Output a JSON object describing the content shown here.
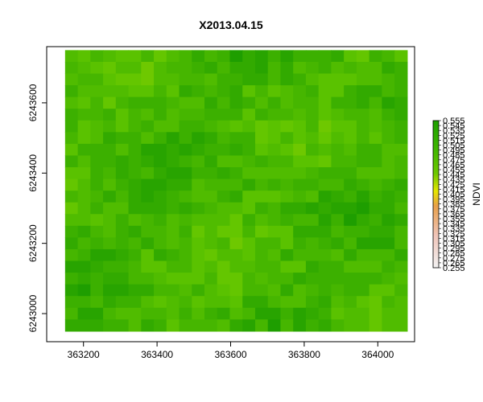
{
  "chart_data": {
    "type": "heatmap",
    "title": "X2013.04.15",
    "xlabel": "",
    "ylabel": "",
    "xlim": [
      363100,
      364100
    ],
    "ylim": [
      6242920,
      6243760
    ],
    "raster_extent": {
      "xmin": 363150,
      "xmax": 364080,
      "ymin": 6242950,
      "ymax": 6243750
    },
    "x_ticks": [
      363200,
      363400,
      363600,
      363800,
      364000
    ],
    "y_ticks": [
      6243000,
      6243200,
      6243400,
      6243600
    ],
    "legend": {
      "title": "NDVI",
      "position": "right",
      "min": 0.255,
      "max": 0.555,
      "labels": [
        "0.555",
        "0.545",
        "0.535",
        "0.525",
        "0.515",
        "0.505",
        "0.495",
        "0.485",
        "0.475",
        "0.465",
        "0.455",
        "0.445",
        "0.435",
        "0.425",
        "0.415",
        "0.405",
        "0.395",
        "0.385",
        "0.375",
        "0.365",
        "0.355",
        "0.345",
        "0.335",
        "0.325",
        "0.315",
        "0.305",
        "0.295",
        "0.285",
        "0.275",
        "0.265",
        "0.255"
      ]
    },
    "colors": {
      "dark_green": "#1ea000",
      "mid_green": "#3cb400",
      "light_green": "#6ec800",
      "yellow": "#e6e600",
      "orange": "#e8a04a",
      "pink": "#f0c4b8",
      "white": "#f2f2f2"
    },
    "grid": false
  }
}
